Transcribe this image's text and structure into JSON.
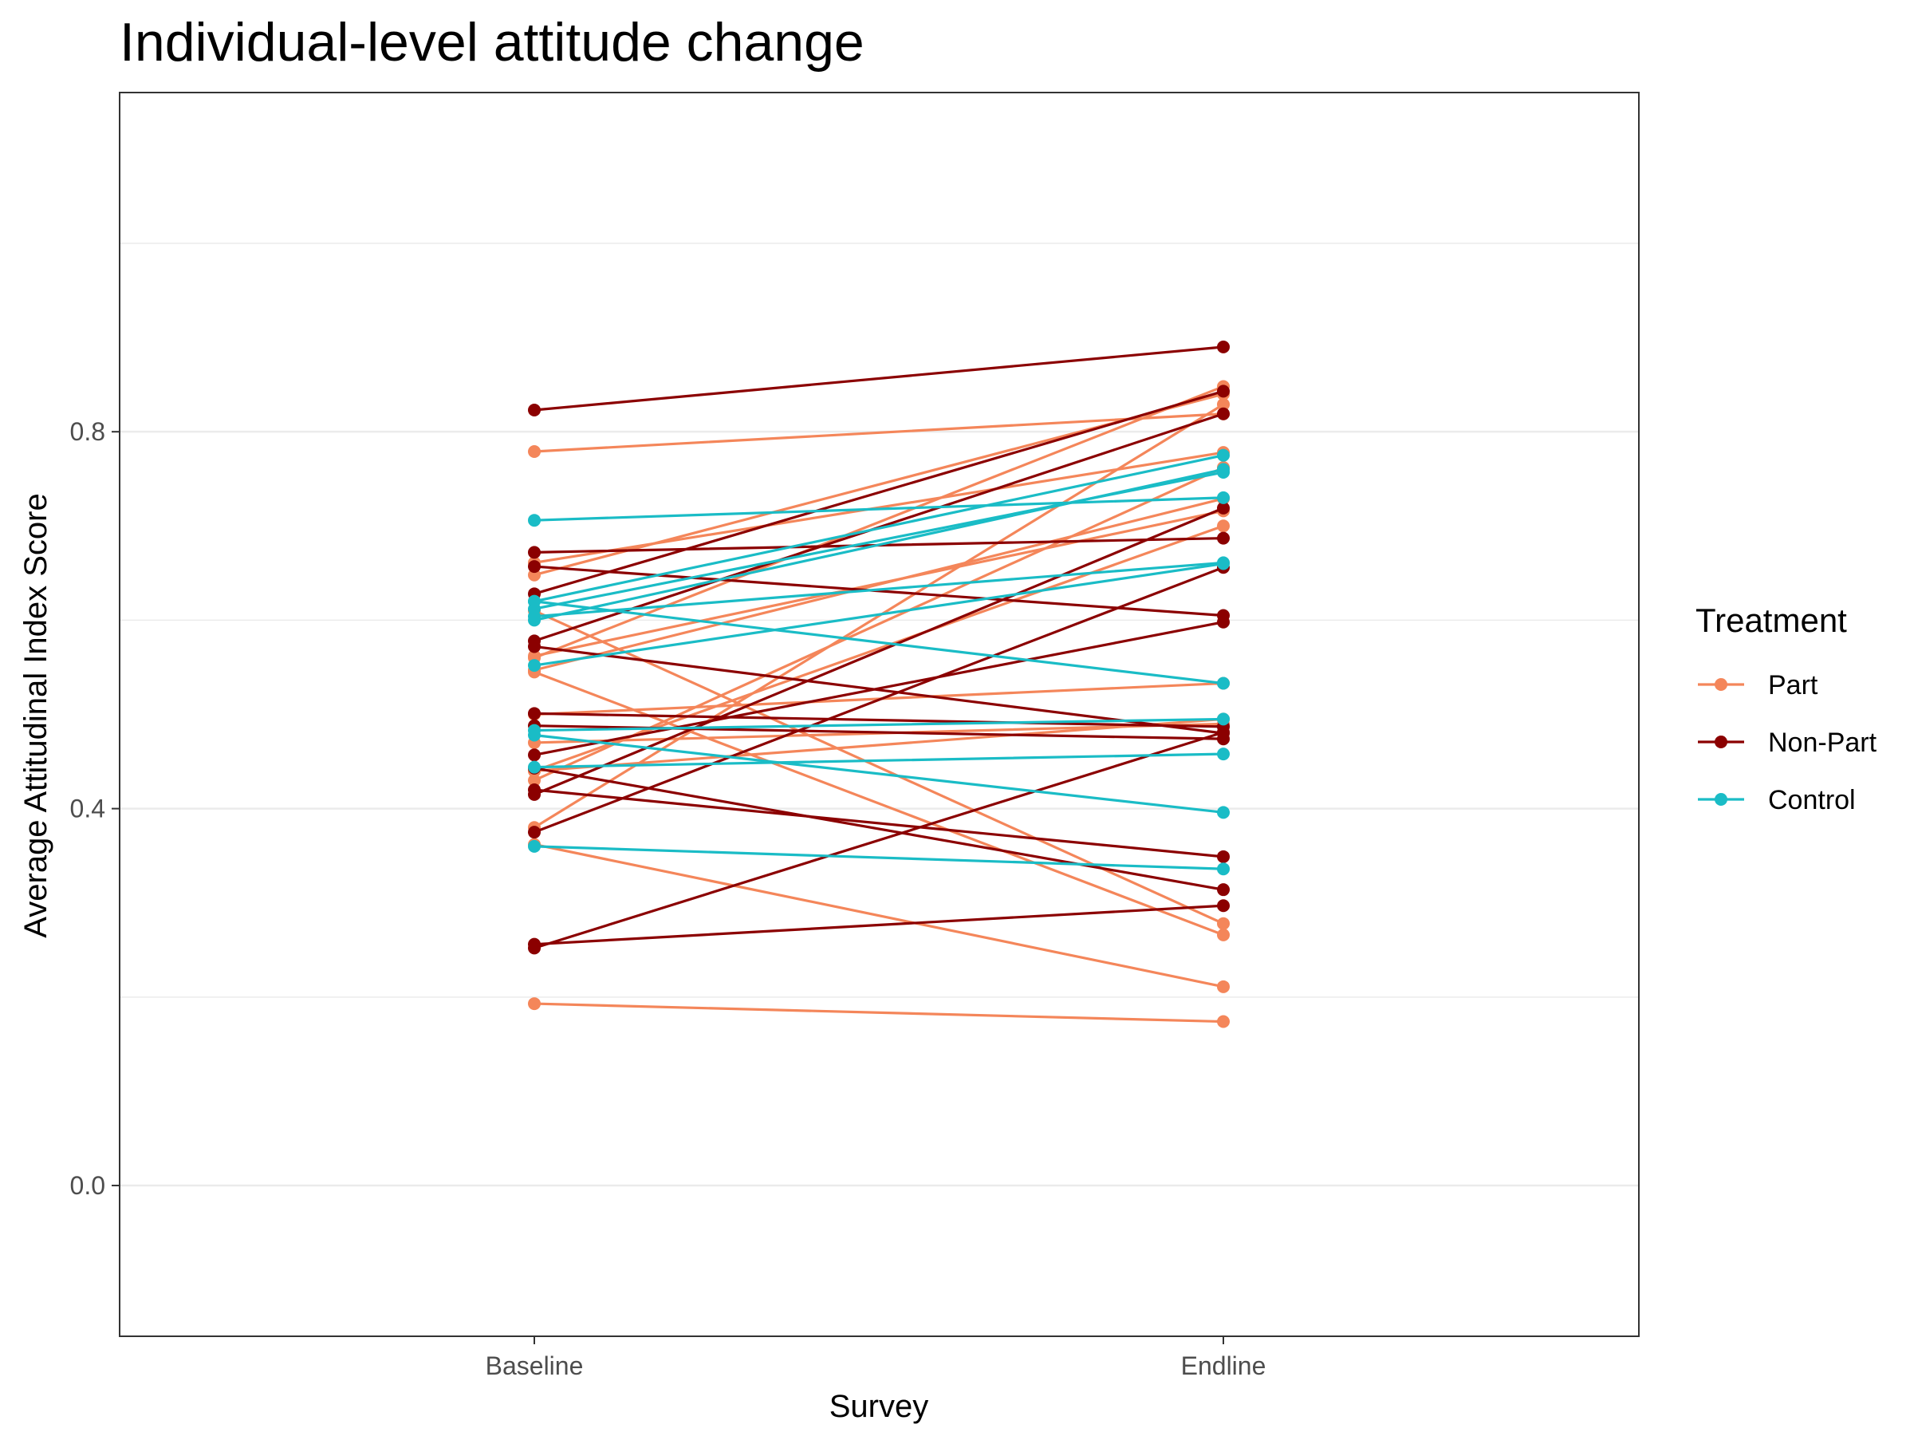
{
  "chart_data": {
    "type": "line",
    "title": "Individual-level attitude change",
    "xlabel": "Survey",
    "ylabel": "Average Attitudinal Index Score",
    "categories": [
      "Baseline",
      "Endline"
    ],
    "ylim": [
      -0.16,
      1.16
    ],
    "yticks": [
      {
        "value": 0.0,
        "label": "0.0"
      },
      {
        "value": 0.4,
        "label": "0.4"
      },
      {
        "value": 0.8,
        "label": "0.8"
      }
    ],
    "minor_grid_values": [
      0.2,
      0.6,
      1.0
    ],
    "grid": true,
    "legend": {
      "title": "Treatment",
      "position": "right",
      "entries": [
        {
          "key": "part",
          "label": "Part",
          "color": "#F4865A"
        },
        {
          "key": "nonpart",
          "label": "Non-Part",
          "color": "#8B0000"
        },
        {
          "key": "control",
          "label": "Control",
          "color": "#1ABCC6"
        }
      ]
    },
    "series": [
      {
        "group": "part",
        "values": [
          0.779,
          0.819
        ]
      },
      {
        "group": "part",
        "values": [
          0.661,
          0.778
        ]
      },
      {
        "group": "part",
        "values": [
          0.648,
          0.84
        ]
      },
      {
        "group": "part",
        "values": [
          0.56,
          0.848
        ]
      },
      {
        "group": "part",
        "values": [
          0.547,
          0.729
        ]
      },
      {
        "group": "part",
        "values": [
          0.5,
          0.533
        ]
      },
      {
        "group": "part",
        "values": [
          0.47,
          0.49
        ]
      },
      {
        "group": "part",
        "values": [
          0.44,
          0.495
        ]
      },
      {
        "group": "part",
        "values": [
          0.43,
          0.762
        ]
      },
      {
        "group": "part",
        "values": [
          0.38,
          0.829
        ]
      },
      {
        "group": "part",
        "values": [
          0.61,
          0.278
        ]
      },
      {
        "group": "part",
        "values": [
          0.545,
          0.266
        ]
      },
      {
        "group": "part",
        "values": [
          0.362,
          0.211
        ]
      },
      {
        "group": "part",
        "values": [
          0.193,
          0.174
        ]
      },
      {
        "group": "part",
        "values": [
          0.562,
          0.716
        ]
      },
      {
        "group": "part",
        "values": [
          0.44,
          0.7
        ]
      },
      {
        "group": "nonpart",
        "values": [
          0.823,
          0.89
        ]
      },
      {
        "group": "nonpart",
        "values": [
          0.672,
          0.687
        ]
      },
      {
        "group": "nonpart",
        "values": [
          0.657,
          0.605
        ]
      },
      {
        "group": "nonpart",
        "values": [
          0.628,
          0.843
        ]
      },
      {
        "group": "nonpart",
        "values": [
          0.578,
          0.819
        ]
      },
      {
        "group": "nonpart",
        "values": [
          0.572,
          0.48
        ]
      },
      {
        "group": "nonpart",
        "values": [
          0.501,
          0.487
        ]
      },
      {
        "group": "nonpart",
        "values": [
          0.488,
          0.474
        ]
      },
      {
        "group": "nonpart",
        "values": [
          0.457,
          0.598
        ]
      },
      {
        "group": "nonpart",
        "values": [
          0.443,
          0.314
        ]
      },
      {
        "group": "nonpart",
        "values": [
          0.42,
          0.349
        ]
      },
      {
        "group": "nonpart",
        "values": [
          0.415,
          0.719
        ]
      },
      {
        "group": "nonpart",
        "values": [
          0.375,
          0.656
        ]
      },
      {
        "group": "nonpart",
        "values": [
          0.256,
          0.297
        ]
      },
      {
        "group": "nonpart",
        "values": [
          0.252,
          0.481
        ]
      },
      {
        "group": "control",
        "values": [
          0.706,
          0.73
        ]
      },
      {
        "group": "control",
        "values": [
          0.62,
          0.775
        ]
      },
      {
        "group": "control",
        "values": [
          0.612,
          0.757
        ]
      },
      {
        "group": "control",
        "values": [
          0.604,
          0.661
        ]
      },
      {
        "group": "control",
        "values": [
          0.6,
          0.76
        ]
      },
      {
        "group": "control",
        "values": [
          0.62,
          0.533
        ]
      },
      {
        "group": "control",
        "values": [
          0.552,
          0.66
        ]
      },
      {
        "group": "control",
        "values": [
          0.483,
          0.495
        ]
      },
      {
        "group": "control",
        "values": [
          0.478,
          0.396
        ]
      },
      {
        "group": "control",
        "values": [
          0.444,
          0.458
        ]
      },
      {
        "group": "control",
        "values": [
          0.36,
          0.336
        ]
      }
    ]
  }
}
